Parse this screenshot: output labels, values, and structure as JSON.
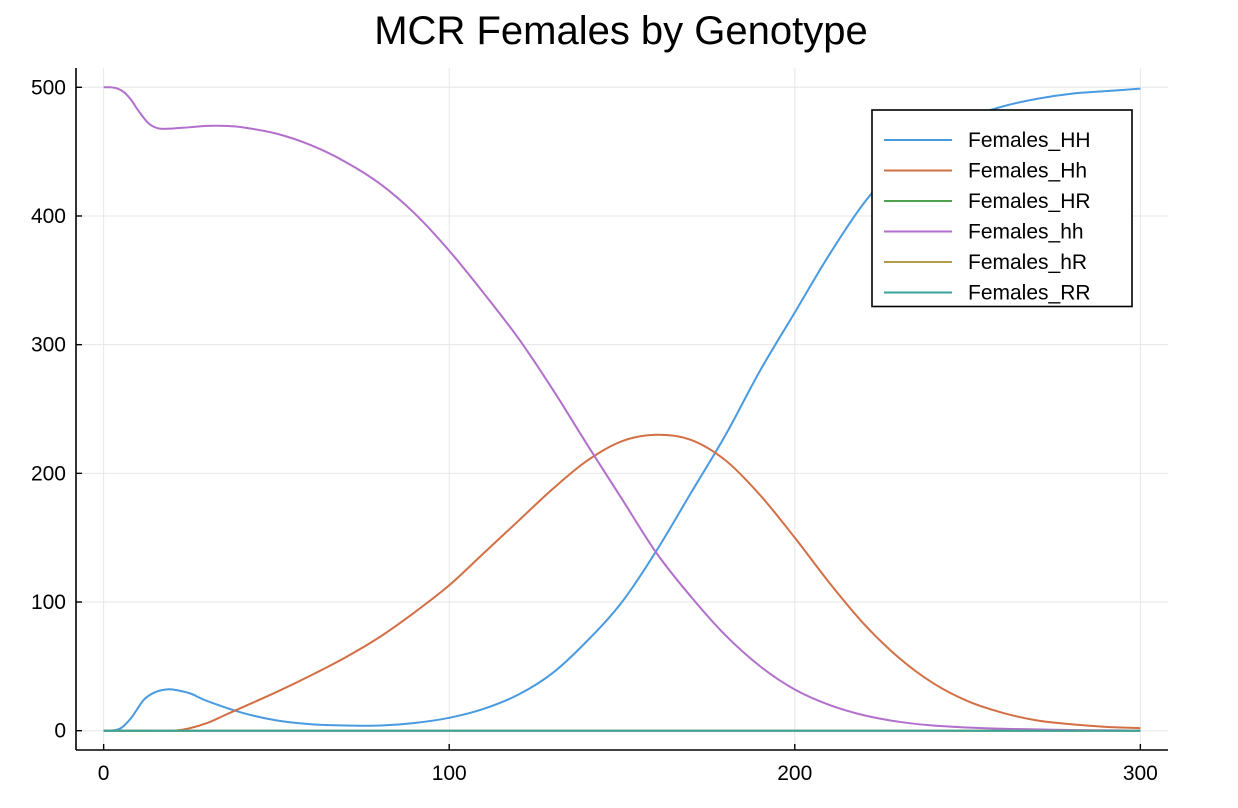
{
  "chart_data": {
    "type": "line",
    "title": "MCR Females by Genotype",
    "xlabel": "",
    "ylabel": "",
    "xlim": [
      -8,
      308
    ],
    "ylim": [
      -15,
      515
    ],
    "xticks": [
      0,
      100,
      200,
      300
    ],
    "yticks": [
      0,
      100,
      200,
      300,
      400,
      500
    ],
    "grid": true,
    "legend_position": "top-right",
    "series": [
      {
        "name": "Females_HH",
        "color": "#4a9ae0",
        "x": [
          0,
          2,
          5,
          8,
          10,
          12,
          15,
          18,
          20,
          25,
          30,
          40,
          50,
          60,
          70,
          80,
          90,
          100,
          110,
          120,
          130,
          140,
          150,
          160,
          170,
          180,
          190,
          200,
          210,
          220,
          230,
          240,
          250,
          260,
          270,
          280,
          290,
          300
        ],
        "y": [
          0,
          0,
          2,
          10,
          18,
          25,
          30,
          32,
          32,
          29,
          23,
          14,
          8,
          5,
          4,
          4,
          6,
          10,
          17,
          28,
          45,
          70,
          100,
          140,
          185,
          230,
          280,
          325,
          370,
          410,
          440,
          462,
          476,
          485,
          491,
          495,
          497,
          499
        ]
      },
      {
        "name": "Females_Hh",
        "color": "#d36f45",
        "x": [
          0,
          10,
          20,
          25,
          30,
          35,
          40,
          50,
          60,
          70,
          80,
          90,
          100,
          110,
          120,
          130,
          140,
          150,
          160,
          170,
          180,
          190,
          200,
          210,
          220,
          230,
          240,
          250,
          260,
          270,
          280,
          290,
          300
        ],
        "y": [
          0,
          0,
          0,
          2,
          6,
          12,
          18,
          30,
          43,
          57,
          73,
          92,
          113,
          138,
          163,
          188,
          210,
          225,
          230,
          226,
          210,
          183,
          150,
          115,
          83,
          57,
          37,
          23,
          14,
          8,
          5,
          3,
          2
        ]
      },
      {
        "name": "Females_HR",
        "color": "#4ea34f",
        "x": [
          0,
          300
        ],
        "y": [
          0,
          0
        ]
      },
      {
        "name": "Females_hh",
        "color": "#b26fcc",
        "x": [
          0,
          2,
          4,
          6,
          8,
          10,
          13,
          16,
          20,
          25,
          30,
          35,
          40,
          50,
          60,
          70,
          80,
          90,
          100,
          110,
          120,
          130,
          140,
          150,
          160,
          170,
          180,
          190,
          200,
          210,
          220,
          230,
          240,
          250,
          260,
          270,
          280,
          290,
          300
        ],
        "y": [
          500,
          500,
          499,
          496,
          490,
          482,
          472,
          468,
          468,
          469,
          470,
          470,
          469,
          464,
          455,
          442,
          425,
          402,
          373,
          340,
          305,
          265,
          222,
          180,
          138,
          104,
          74,
          50,
          32,
          20,
          12,
          7,
          4,
          2.5,
          1.5,
          1,
          0.5,
          0.3,
          0.1
        ]
      },
      {
        "name": "Females_hR",
        "color": "#b59a4a",
        "x": [
          0,
          300
        ],
        "y": [
          0,
          0
        ]
      },
      {
        "name": "Females_RR",
        "color": "#3aa39b",
        "x": [
          0,
          300
        ],
        "y": [
          0,
          0
        ]
      }
    ]
  }
}
